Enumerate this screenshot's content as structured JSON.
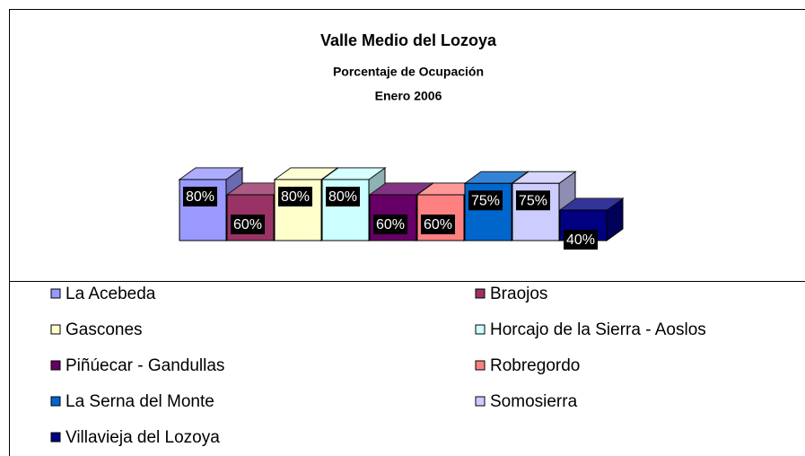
{
  "chart_data": {
    "type": "bar",
    "title": "Valle Medio del Lozoya",
    "subtitle": "Porcentaje de Ocupación",
    "subtitle2": "Enero 2006",
    "categories": [
      "La Acebeda",
      "Braojos",
      "Gascones",
      "Horcajo de la Sierra - Aoslos",
      "Piñúecar - Gandullas",
      "Robregordo",
      "La Serna del Monte",
      "Somosierra",
      "Villavieja del Lozoya"
    ],
    "values": [
      80,
      60,
      80,
      80,
      60,
      60,
      75,
      75,
      40
    ],
    "value_labels": [
      "80%",
      "60%",
      "80%",
      "80%",
      "60%",
      "60%",
      "75%",
      "75%",
      "40%"
    ],
    "colors": [
      "#9999ff",
      "#993366",
      "#ffffcc",
      "#ccffff",
      "#660066",
      "#ff8080",
      "#0066cc",
      "#ccccff",
      "#000080"
    ],
    "legend": "bottom"
  }
}
